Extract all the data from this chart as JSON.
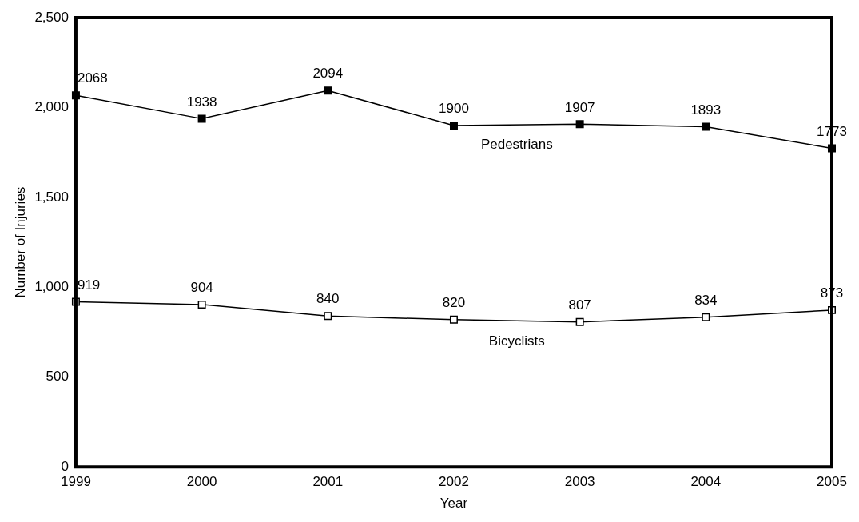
{
  "chart_data": {
    "type": "line",
    "xlabel": "Year",
    "ylabel": "Number of Injuries",
    "categories": [
      "1999",
      "2000",
      "2001",
      "2002",
      "2003",
      "2004",
      "2005"
    ],
    "series": [
      {
        "name": "Pedestrians",
        "color": "#000000",
        "values": [
          2068,
          1938,
          2094,
          1900,
          1907,
          1893,
          1773
        ]
      },
      {
        "name": "Bicyclists",
        "color": "#000000",
        "values": [
          919,
          904,
          840,
          820,
          807,
          834,
          873
        ]
      }
    ],
    "ylim": [
      0,
      2500
    ],
    "yticks": [
      0,
      500,
      {
        "value": 1000,
        "label": "1,000"
      },
      {
        "value": 1500,
        "label": "1,500"
      },
      {
        "value": 2000,
        "label": "2,000"
      },
      {
        "value": 2500,
        "label": "2,500"
      }
    ],
    "grid": false,
    "legend": false,
    "marker": "square",
    "line_style": "solid",
    "data_labels": true
  }
}
